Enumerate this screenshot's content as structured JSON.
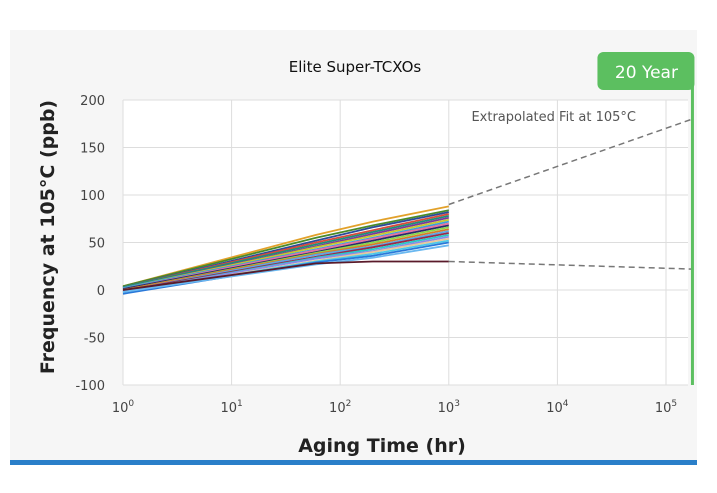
{
  "chart_data": {
    "type": "line",
    "title": "Elite Super-TCXOs",
    "xlabel": "Aging Time (hr)",
    "ylabel": "Frequency at 105°C (ppb)",
    "x_scale": "log",
    "xlim": [
      1,
      180000
    ],
    "ylim": [
      -100,
      200
    ],
    "y_ticks": [
      "200",
      "150",
      "100",
      "50",
      "0",
      "-50",
      "-100"
    ],
    "x_ticks": [
      {
        "base": "10",
        "exp": "0"
      },
      {
        "base": "10",
        "exp": "1"
      },
      {
        "base": "10",
        "exp": "2"
      },
      {
        "base": "10",
        "exp": "3"
      },
      {
        "base": "10",
        "exp": "4"
      },
      {
        "base": "10",
        "exp": "5"
      }
    ],
    "grid": true,
    "annotation": "Extrapolated Fit at 105°C",
    "marker": {
      "label": "20 Year",
      "x": 175200,
      "color": "#5cbf60"
    },
    "extrapolation": [
      {
        "x": [
          1000,
          175200
        ],
        "y": [
          90,
          180
        ]
      },
      {
        "x": [
          1000,
          175200
        ],
        "y": [
          30,
          22
        ]
      }
    ],
    "series": [
      {
        "x": [
          1,
          60,
          200,
          1000
        ],
        "y": [
          4,
          58,
          72,
          88
        ]
      },
      {
        "x": [
          1,
          60,
          200,
          1000
        ],
        "y": [
          4,
          55,
          68,
          84
        ]
      },
      {
        "x": [
          1,
          60,
          200,
          1000
        ],
        "y": [
          3,
          52,
          66,
          82
        ]
      },
      {
        "x": [
          1,
          60,
          200,
          1000
        ],
        "y": [
          3,
          50,
          63,
          80
        ]
      },
      {
        "x": [
          1,
          60,
          200,
          1000
        ],
        "y": [
          3,
          48,
          61,
          78
        ]
      },
      {
        "x": [
          1,
          60,
          200,
          1000
        ],
        "y": [
          2,
          46,
          59,
          76
        ]
      },
      {
        "x": [
          1,
          60,
          200,
          1000
        ],
        "y": [
          2,
          45,
          57,
          74
        ]
      },
      {
        "x": [
          1,
          60,
          200,
          1000
        ],
        "y": [
          2,
          43,
          55,
          72
        ]
      },
      {
        "x": [
          1,
          60,
          200,
          1000
        ],
        "y": [
          1,
          42,
          54,
          70
        ]
      },
      {
        "x": [
          1,
          60,
          200,
          1000
        ],
        "y": [
          1,
          40,
          52,
          68
        ]
      },
      {
        "x": [
          1,
          60,
          200,
          1000
        ],
        "y": [
          0,
          39,
          50,
          66
        ]
      },
      {
        "x": [
          1,
          60,
          200,
          1000
        ],
        "y": [
          0,
          38,
          48,
          64
        ]
      },
      {
        "x": [
          1,
          60,
          200,
          1000
        ],
        "y": [
          -1,
          37,
          46,
          62
        ]
      },
      {
        "x": [
          1,
          60,
          200,
          1000
        ],
        "y": [
          -1,
          35,
          45,
          60
        ]
      },
      {
        "x": [
          1,
          60,
          200,
          1000
        ],
        "y": [
          -2,
          34,
          43,
          58
        ]
      },
      {
        "x": [
          1,
          60,
          200,
          1000
        ],
        "y": [
          -2,
          33,
          41,
          56
        ]
      },
      {
        "x": [
          1,
          60,
          200,
          1000
        ],
        "y": [
          -3,
          31,
          40,
          54
        ]
      },
      {
        "x": [
          1,
          60,
          200,
          1000
        ],
        "y": [
          -3,
          30,
          38,
          52
        ]
      },
      {
        "x": [
          1,
          60,
          200,
          1000
        ],
        "y": [
          -4,
          29,
          36,
          50
        ]
      },
      {
        "x": [
          1,
          60,
          200,
          1000
        ],
        "y": [
          -2,
          27,
          34,
          47
        ]
      },
      {
        "x": [
          1,
          60,
          200,
          1000
        ],
        "y": [
          0,
          28,
          30,
          30
        ]
      }
    ]
  }
}
